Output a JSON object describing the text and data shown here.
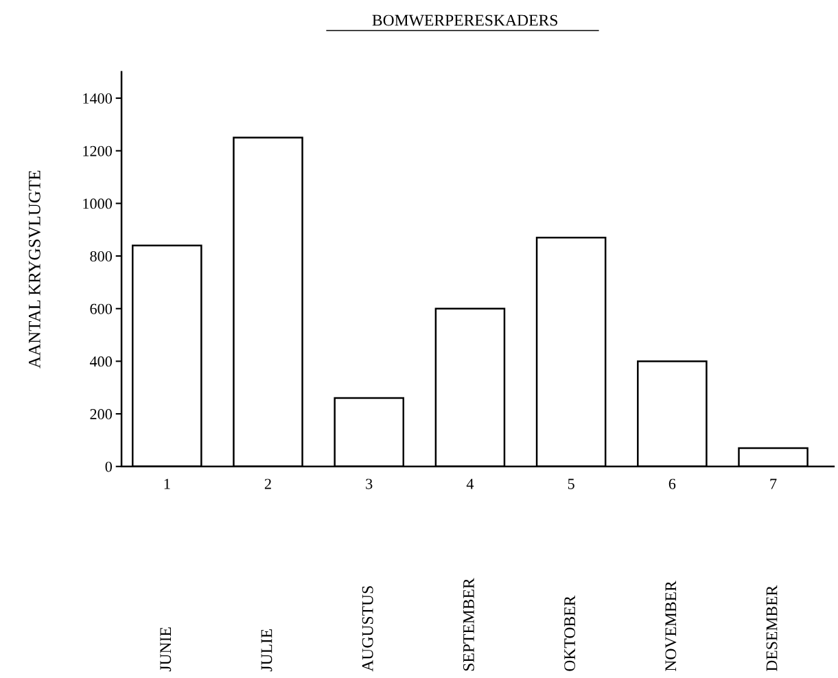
{
  "chart_data": {
    "type": "bar",
    "title": "BOMWERPERESKADERS",
    "ylabel": "AANTAL KRYGSVLUGTE",
    "categories": [
      "JUNIE",
      "JULIE",
      "AUGUSTUS",
      "SEPTEMBER",
      "OKTOBER",
      "NOVEMBER",
      "DESEMBER"
    ],
    "values": [
      840,
      1250,
      260,
      600,
      870,
      400,
      70
    ],
    "color": "#ffffff",
    "ylim": [
      0,
      1500
    ],
    "yticks": [
      0,
      200,
      400,
      600,
      800,
      1000,
      1200,
      1400
    ],
    "grid": false,
    "legend": false,
    "annotations": [
      "1",
      "2",
      "3",
      "4",
      "5",
      "6",
      "7"
    ]
  }
}
